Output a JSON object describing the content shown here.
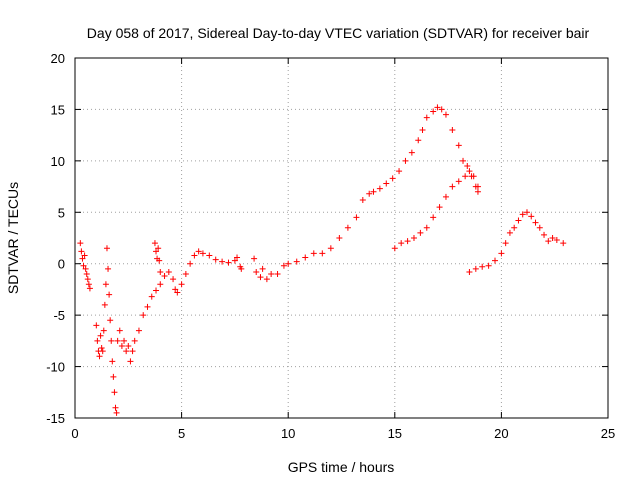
{
  "chart_data": {
    "type": "scatter",
    "title": "Day 058 of 2017, Sidereal Day-to-day VTEC variation (SDTVAR) for receiver bair",
    "xlabel": "GPS time / hours",
    "ylabel": "SDTVAR / TECUs",
    "xlim": [
      0,
      25
    ],
    "ylim": [
      -15,
      20
    ],
    "xticks": [
      "0",
      "5",
      "10",
      "15",
      "20",
      "25"
    ],
    "yticks": [
      "-15",
      "-10",
      "-5",
      "0",
      "5",
      "10",
      "15",
      "20"
    ],
    "grid": true,
    "marker": "+",
    "color": "#ff0000",
    "series": [
      {
        "points": [
          [
            0.25,
            2.0
          ],
          [
            0.3,
            1.2
          ],
          [
            0.35,
            0.5
          ],
          [
            0.4,
            -0.2
          ],
          [
            0.45,
            0.8
          ],
          [
            0.5,
            -0.5
          ],
          [
            0.55,
            -1.0
          ],
          [
            0.6,
            -1.5
          ],
          [
            0.65,
            -2.0
          ],
          [
            0.7,
            -2.4
          ],
          [
            1.0,
            -6.0
          ],
          [
            1.05,
            -7.5
          ],
          [
            1.1,
            -8.5
          ],
          [
            1.15,
            -9.0
          ],
          [
            1.2,
            -7.0
          ],
          [
            1.25,
            -8.2
          ],
          [
            1.3,
            -8.5
          ],
          [
            1.35,
            -6.5
          ],
          [
            1.4,
            -4.0
          ],
          [
            1.45,
            -2.0
          ],
          [
            1.5,
            1.5
          ],
          [
            1.55,
            -0.5
          ],
          [
            1.6,
            -3.0
          ],
          [
            1.65,
            -5.5
          ],
          [
            1.7,
            -7.5
          ],
          [
            1.75,
            -9.5
          ],
          [
            1.8,
            -11.0
          ],
          [
            1.85,
            -12.5
          ],
          [
            1.9,
            -14.0
          ],
          [
            1.95,
            -14.5
          ],
          [
            2.0,
            -7.5
          ],
          [
            2.1,
            -6.5
          ],
          [
            2.2,
            -8.0
          ],
          [
            2.3,
            -7.5
          ],
          [
            2.4,
            -8.5
          ],
          [
            2.5,
            -8.0
          ],
          [
            2.6,
            -9.5
          ],
          [
            2.7,
            -8.5
          ],
          [
            2.8,
            -7.5
          ],
          [
            3.0,
            -6.5
          ],
          [
            3.2,
            -5.0
          ],
          [
            3.4,
            -4.2
          ],
          [
            3.6,
            -3.2
          ],
          [
            3.8,
            -2.6
          ],
          [
            4.0,
            -2.0
          ],
          [
            4.2,
            -1.2
          ],
          [
            4.4,
            -0.8
          ],
          [
            4.6,
            -1.5
          ],
          [
            4.7,
            -2.5
          ],
          [
            4.8,
            -2.8
          ],
          [
            5.0,
            -2.0
          ],
          [
            5.2,
            -1.0
          ],
          [
            5.4,
            0.0
          ],
          [
            5.6,
            0.8
          ],
          [
            5.8,
            1.2
          ],
          [
            6.0,
            1.0
          ],
          [
            6.3,
            0.8
          ],
          [
            6.6,
            0.4
          ],
          [
            6.9,
            0.2
          ],
          [
            7.2,
            0.1
          ],
          [
            7.5,
            0.3
          ],
          [
            7.8,
            -0.5
          ],
          [
            8.4,
            0.5
          ],
          [
            8.8,
            -0.5
          ],
          [
            9.2,
            -1.0
          ],
          [
            9.5,
            -1.0
          ],
          [
            9.8,
            -0.2
          ],
          [
            10.0,
            0.0
          ],
          [
            10.4,
            0.2
          ],
          [
            10.8,
            0.6
          ],
          [
            11.2,
            1.0
          ],
          [
            11.6,
            1.0
          ],
          [
            12.0,
            1.5
          ],
          [
            12.4,
            2.5
          ],
          [
            12.8,
            3.5
          ],
          [
            13.2,
            4.5
          ],
          [
            13.5,
            6.2
          ],
          [
            13.8,
            6.8
          ],
          [
            14.0,
            7.0
          ],
          [
            14.3,
            7.3
          ],
          [
            14.6,
            7.8
          ],
          [
            14.9,
            8.3
          ],
          [
            15.2,
            9.0
          ],
          [
            15.5,
            10.0
          ],
          [
            15.8,
            10.8
          ],
          [
            16.1,
            12.0
          ],
          [
            16.3,
            13.0
          ],
          [
            16.5,
            14.2
          ],
          [
            16.8,
            14.8
          ],
          [
            17.0,
            15.2
          ],
          [
            17.2,
            15.0
          ],
          [
            17.4,
            14.5
          ],
          [
            17.7,
            13.0
          ],
          [
            18.0,
            11.5
          ],
          [
            18.2,
            10.0
          ],
          [
            18.4,
            9.5
          ],
          [
            18.6,
            8.5
          ],
          [
            18.8,
            7.5
          ],
          [
            18.9,
            7.0
          ],
          [
            15.0,
            1.5
          ],
          [
            15.3,
            2.0
          ],
          [
            15.6,
            2.2
          ],
          [
            15.9,
            2.5
          ],
          [
            16.2,
            3.0
          ],
          [
            16.5,
            3.5
          ],
          [
            16.8,
            4.5
          ],
          [
            17.1,
            5.5
          ],
          [
            17.4,
            6.5
          ],
          [
            17.7,
            7.5
          ],
          [
            18.0,
            8.0
          ],
          [
            18.3,
            8.5
          ],
          [
            18.5,
            9.0
          ],
          [
            18.7,
            8.5
          ],
          [
            18.9,
            7.5
          ],
          [
            18.5,
            -0.8
          ],
          [
            18.8,
            -0.5
          ],
          [
            19.1,
            -0.3
          ],
          [
            19.4,
            -0.2
          ],
          [
            19.7,
            0.3
          ],
          [
            20.0,
            1.0
          ],
          [
            20.2,
            2.0
          ],
          [
            20.4,
            3.0
          ],
          [
            20.6,
            3.5
          ],
          [
            20.8,
            4.2
          ],
          [
            21.0,
            4.8
          ],
          [
            21.2,
            5.0
          ],
          [
            21.4,
            4.6
          ],
          [
            21.6,
            4.0
          ],
          [
            21.8,
            3.5
          ],
          [
            22.0,
            2.8
          ],
          [
            22.2,
            2.2
          ],
          [
            22.4,
            2.5
          ],
          [
            22.6,
            2.3
          ],
          [
            22.9,
            2.0
          ],
          [
            3.75,
            2.0
          ],
          [
            3.8,
            1.2
          ],
          [
            3.85,
            0.5
          ],
          [
            3.9,
            1.5
          ],
          [
            3.95,
            0.3
          ],
          [
            4.0,
            -0.8
          ],
          [
            7.6,
            0.6
          ],
          [
            7.75,
            -0.3
          ],
          [
            8.5,
            -0.8
          ],
          [
            8.7,
            -1.3
          ],
          [
            9.0,
            -1.5
          ]
        ]
      }
    ]
  }
}
